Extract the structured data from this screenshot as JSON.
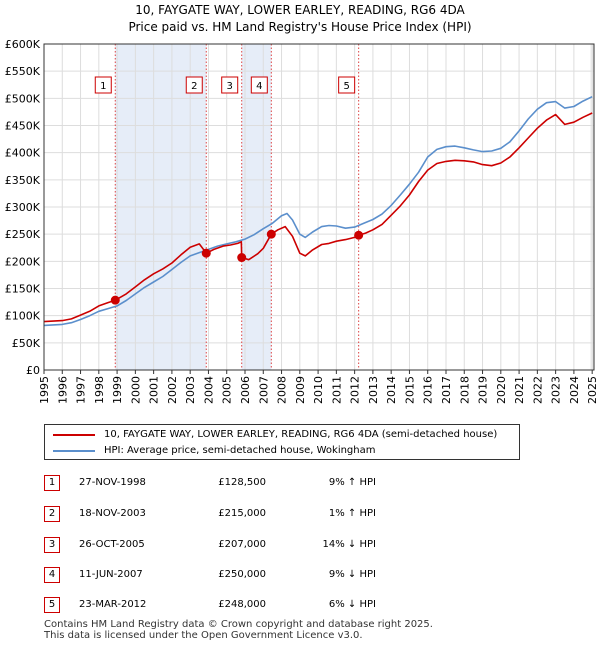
{
  "chart_data": {
    "type": "line",
    "title": "10, FAYGATE WAY, LOWER EARLEY, READING, RG6 4DA",
    "subtitle": "Price paid vs. HM Land Registry's House Price Index (HPI)",
    "xlim": [
      1995,
      2025.1
    ],
    "ylim": [
      0,
      600000
    ],
    "y_ticks": [
      0,
      50000,
      100000,
      150000,
      200000,
      250000,
      300000,
      350000,
      400000,
      450000,
      500000,
      550000,
      600000
    ],
    "y_tick_labels": [
      "£0",
      "£50K",
      "£100K",
      "£150K",
      "£200K",
      "£250K",
      "£300K",
      "£350K",
      "£400K",
      "£450K",
      "£500K",
      "£550K",
      "£600K"
    ],
    "x_tick_labels": [
      "1995",
      "1996",
      "1997",
      "1998",
      "1999",
      "2000",
      "2001",
      "2002",
      "2003",
      "2004",
      "2005",
      "2006",
      "2007",
      "2008",
      "2009",
      "2010",
      "2011",
      "2012",
      "2013",
      "2014",
      "2015",
      "2016",
      "2017",
      "2018",
      "2019",
      "2020",
      "2021",
      "2022",
      "2023",
      "2024",
      "2025"
    ],
    "grid": true,
    "series": [
      {
        "name": "10, FAYGATE WAY, LOWER EARLEY, READING, RG6 4DA (semi-detached house)",
        "color": "#cc0000",
        "x": [
          1995.0,
          1995.5,
          1996.0,
          1996.5,
          1997.0,
          1997.5,
          1998.0,
          1998.5,
          1998.9,
          1999.5,
          2000.0,
          2000.5,
          2001.0,
          2001.5,
          2002.0,
          2002.5,
          2003.0,
          2003.5,
          2003.88,
          2004.3,
          2004.8,
          2005.2,
          2005.6,
          2005.8,
          2005.82,
          2006.2,
          2006.7,
          2007.0,
          2007.44,
          2007.8,
          2008.2,
          2008.6,
          2009.0,
          2009.3,
          2009.7,
          2010.2,
          2010.6,
          2011.0,
          2011.5,
          2012.0,
          2012.22,
          2012.6,
          2013.0,
          2013.5,
          2014.0,
          2014.5,
          2015.0,
          2015.5,
          2016.0,
          2016.5,
          2017.0,
          2017.5,
          2018.0,
          2018.5,
          2019.0,
          2019.5,
          2020.0,
          2020.5,
          2021.0,
          2021.5,
          2022.0,
          2022.5,
          2023.0,
          2023.5,
          2024.0,
          2024.5,
          2025.0
        ],
        "values": [
          89000,
          90000,
          91000,
          94000,
          101000,
          108000,
          118000,
          124000,
          128500,
          140000,
          153000,
          166000,
          177000,
          186000,
          197000,
          212000,
          226000,
          232000,
          215000,
          222000,
          228000,
          230000,
          233000,
          236000,
          207000,
          203000,
          214000,
          224000,
          250000,
          258000,
          264000,
          246000,
          215000,
          210000,
          221000,
          231000,
          233000,
          237000,
          240000,
          244000,
          248000,
          252000,
          258000,
          268000,
          285000,
          302000,
          322000,
          347000,
          368000,
          380000,
          384000,
          386000,
          385000,
          383000,
          378000,
          376000,
          381000,
          392000,
          409000,
          427000,
          445000,
          460000,
          470000,
          452000,
          456000,
          465000,
          473000
        ]
      },
      {
        "name": "HPI: Average price, semi-detached house, Wokingham",
        "color": "#5b8fcc",
        "x": [
          1995.0,
          1995.5,
          1996.0,
          1996.5,
          1997.0,
          1997.5,
          1998.0,
          1998.5,
          1999.0,
          1999.5,
          2000.0,
          2000.5,
          2001.0,
          2001.5,
          2002.0,
          2002.5,
          2003.0,
          2003.5,
          2004.0,
          2004.5,
          2005.0,
          2005.5,
          2006.0,
          2006.5,
          2007.0,
          2007.5,
          2008.0,
          2008.3,
          2008.6,
          2009.0,
          2009.3,
          2009.7,
          2010.2,
          2010.6,
          2011.0,
          2011.5,
          2012.0,
          2012.5,
          2013.0,
          2013.5,
          2014.0,
          2014.5,
          2015.0,
          2015.5,
          2016.0,
          2016.5,
          2017.0,
          2017.5,
          2018.0,
          2018.5,
          2019.0,
          2019.5,
          2020.0,
          2020.5,
          2021.0,
          2021.5,
          2022.0,
          2022.5,
          2023.0,
          2023.5,
          2024.0,
          2024.5,
          2025.0
        ],
        "values": [
          82000,
          83000,
          84000,
          87000,
          93000,
          100000,
          108000,
          113000,
          118000,
          128000,
          140000,
          152000,
          162000,
          172000,
          185000,
          198000,
          210000,
          216000,
          222000,
          228000,
          232000,
          236000,
          241000,
          249000,
          260000,
          270000,
          284000,
          288000,
          276000,
          250000,
          244000,
          254000,
          264000,
          266000,
          265000,
          261000,
          263000,
          270000,
          277000,
          287000,
          303000,
          322000,
          342000,
          364000,
          392000,
          406000,
          411000,
          412000,
          409000,
          405000,
          402000,
          403000,
          408000,
          420000,
          440000,
          462000,
          480000,
          492000,
          494000,
          482000,
          485000,
          495000,
          503000
        ]
      }
    ],
    "sales": [
      {
        "num": "1",
        "x": 1998.9,
        "date": "27-NOV-1998",
        "value": 128500,
        "price": "£128,500",
        "hpi_rel": "9% ↑ HPI"
      },
      {
        "num": "2",
        "x": 2003.88,
        "date": "18-NOV-2003",
        "value": 215000,
        "price": "£215,000",
        "hpi_rel": "1% ↑ HPI"
      },
      {
        "num": "3",
        "x": 2005.82,
        "date": "26-OCT-2005",
        "value": 207000,
        "price": "£207,000",
        "hpi_rel": "14% ↓ HPI"
      },
      {
        "num": "4",
        "x": 2007.44,
        "date": "11-JUN-2007",
        "value": 250000,
        "price": "£250,000",
        "hpi_rel": "9% ↓ HPI"
      },
      {
        "num": "5",
        "x": 2012.22,
        "date": "23-MAR-2012",
        "value": 248000,
        "price": "£248,000",
        "hpi_rel": "6% ↓ HPI"
      }
    ],
    "legend": [
      {
        "label": "10, FAYGATE WAY, LOWER EARLEY, READING, RG6 4DA (semi-detached house)",
        "color": "#cc0000"
      },
      {
        "label": "HPI: Average price, semi-detached house, Wokingham",
        "color": "#5b8fcc"
      }
    ],
    "footer_line1": "Contains HM Land Registry data © Crown copyright and database right 2025.",
    "footer_line2": "This data is licensed under the Open Government Licence v3.0."
  }
}
